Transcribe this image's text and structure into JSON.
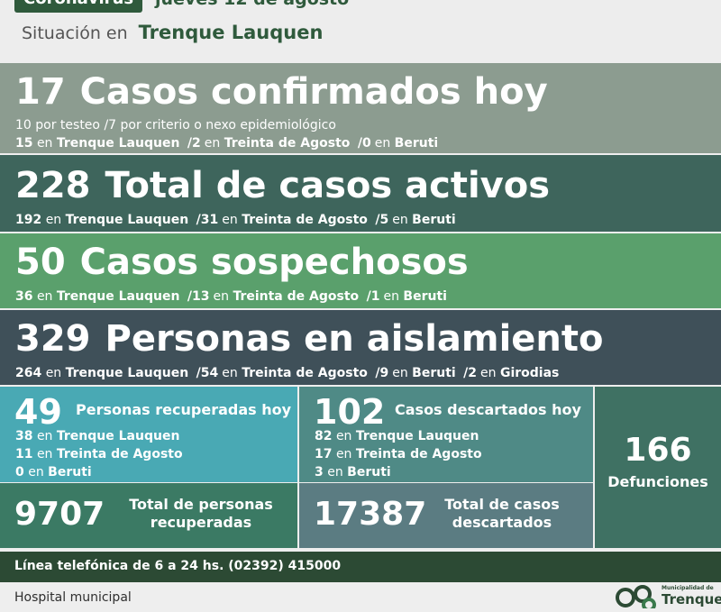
{
  "header": {
    "tag": "Coronavirus",
    "date": "jueves 12 de agosto",
    "situation_label": "Situación en",
    "city": "Trenque Lauquen"
  },
  "confirmed": {
    "number": "17",
    "title": "Casos confirmados hoy",
    "line1": "10 por testeo  /7 por criterio o nexo epidemiológico",
    "line2_parts": [
      "15",
      "en",
      "Trenque Lauquen",
      "/2",
      "en",
      "Treinta de Agosto",
      "/0",
      "en",
      "Beruti"
    ]
  },
  "active": {
    "number": "228",
    "title": "Total de casos activos",
    "parts": [
      "192",
      "en",
      "Trenque Lauquen",
      "/31",
      "en",
      "Treinta de Agosto",
      "/5",
      "en",
      "Beruti"
    ]
  },
  "suspected": {
    "number": "50",
    "title": "Casos sospechosos",
    "parts": [
      "36",
      "en",
      "Trenque Lauquen",
      "/13",
      "en",
      "Treinta de Agosto",
      "/1",
      "en",
      "Beruti"
    ]
  },
  "isolation": {
    "number": "329",
    "title": "Personas en aislamiento",
    "parts": [
      "264",
      "en",
      "Trenque Lauquen",
      "/54",
      "en",
      "Treinta de Agosto",
      "/9",
      "en",
      "Beruti",
      "/2",
      "en",
      "Girodias"
    ]
  },
  "recovered": {
    "number": "49",
    "title": "Personas recuperadas hoy",
    "lines": [
      {
        "n": "38",
        "en": "en",
        "place": "Trenque Lauquen"
      },
      {
        "n": "11",
        "en": "en",
        "place": "Treinta de Agosto"
      },
      {
        "n": "0",
        "en": "en",
        "place": "Beruti"
      }
    ],
    "total": "9707",
    "total_label": "Total de personas recuperadas"
  },
  "discarded": {
    "number": "102",
    "title": "Casos descartados hoy",
    "lines": [
      {
        "n": "82",
        "en": "en",
        "place": "Trenque Lauquen"
      },
      {
        "n": "17",
        "en": "en",
        "place": "Treinta de Agosto"
      },
      {
        "n": "3",
        "en": "en",
        "place": "Beruti"
      }
    ],
    "total": "17387",
    "total_label": "Total de casos descartados"
  },
  "deaths": {
    "number": "166",
    "label": "Defunciones"
  },
  "phone": "Línea telefónica de 6 a 24 hs. (02392) 415000",
  "footer": "Hospital municipal",
  "logo": {
    "small": "Municipalidad de",
    "big": "Trenque"
  }
}
